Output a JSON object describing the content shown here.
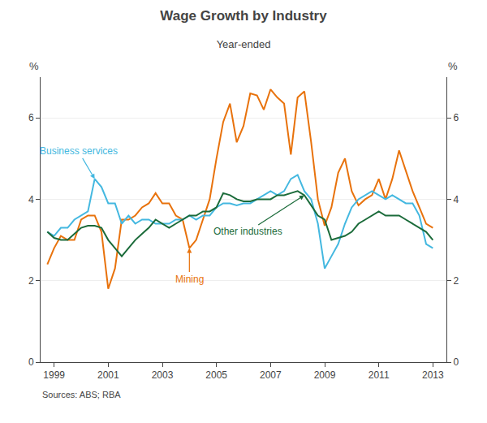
{
  "chart_data": {
    "type": "line",
    "title": "Wage Growth by Industry",
    "subtitle": "Year-ended",
    "ylabel": "%",
    "y2label": "%",
    "source": "Sources: ABS; RBA",
    "xlim": [
      1998.5,
      2013.5
    ],
    "xticks": [
      1999,
      2001,
      2003,
      2005,
      2007,
      2009,
      2011,
      2013
    ],
    "ylim": [
      0,
      7
    ],
    "yticks": [
      0,
      2,
      4,
      6
    ],
    "y2lim": [
      0,
      7
    ],
    "y2ticks": [
      0,
      2,
      4,
      6
    ],
    "grid": true,
    "x": [
      1998.75,
      1999.0,
      1999.25,
      1999.5,
      1999.75,
      2000.0,
      2000.25,
      2000.5,
      2000.75,
      2001.0,
      2001.25,
      2001.5,
      2001.75,
      2002.0,
      2002.25,
      2002.5,
      2002.75,
      2003.0,
      2003.25,
      2003.5,
      2003.75,
      2004.0,
      2004.25,
      2004.5,
      2004.75,
      2005.0,
      2005.25,
      2005.5,
      2005.75,
      2006.0,
      2006.25,
      2006.5,
      2006.75,
      2007.0,
      2007.25,
      2007.5,
      2007.75,
      2008.0,
      2008.25,
      2008.5,
      2008.75,
      2009.0,
      2009.25,
      2009.5,
      2009.75,
      2010.0,
      2010.25,
      2010.5,
      2010.75,
      2011.0,
      2011.25,
      2011.5,
      2011.75,
      2012.0,
      2012.25,
      2012.5,
      2012.75,
      2013.0
    ],
    "series": [
      {
        "name": "Mining",
        "color": "#E8720C",
        "values": [
          2.4,
          2.8,
          3.1,
          3.0,
          3.0,
          3.5,
          3.6,
          3.6,
          3.2,
          1.8,
          2.3,
          3.5,
          3.5,
          3.6,
          3.8,
          3.9,
          4.15,
          3.9,
          3.9,
          3.6,
          3.5,
          2.8,
          3.0,
          3.5,
          4.0,
          5.0,
          5.9,
          6.35,
          5.4,
          5.8,
          6.6,
          6.55,
          6.2,
          6.7,
          6.5,
          6.35,
          5.1,
          6.5,
          6.65,
          5.4,
          4.0,
          3.35,
          3.8,
          4.65,
          5.0,
          4.2,
          3.85,
          4.0,
          4.1,
          4.5,
          4.0,
          4.5,
          5.2,
          4.7,
          4.2,
          3.8,
          3.4,
          3.3
        ]
      },
      {
        "name": "Business services",
        "color": "#44B8E0",
        "values": [
          3.2,
          3.1,
          3.3,
          3.3,
          3.5,
          3.6,
          3.7,
          4.5,
          4.3,
          3.9,
          3.9,
          3.4,
          3.6,
          3.4,
          3.5,
          3.5,
          3.4,
          3.4,
          3.4,
          3.5,
          3.5,
          3.6,
          3.5,
          3.6,
          3.6,
          3.8,
          3.9,
          3.9,
          3.85,
          3.9,
          3.9,
          4.0,
          4.1,
          4.2,
          4.1,
          4.2,
          4.5,
          4.6,
          4.2,
          4.0,
          3.4,
          2.3,
          2.6,
          2.9,
          3.4,
          3.8,
          4.0,
          4.1,
          4.2,
          4.1,
          4.0,
          4.1,
          4.0,
          3.9,
          3.9,
          3.6,
          2.9,
          2.8
        ]
      },
      {
        "name": "Other industries",
        "color": "#1B6B3A",
        "values": [
          3.2,
          3.05,
          3.0,
          3.0,
          3.15,
          3.3,
          3.35,
          3.35,
          3.3,
          3.0,
          2.8,
          2.6,
          2.8,
          3.0,
          3.15,
          3.3,
          3.5,
          3.4,
          3.3,
          3.4,
          3.5,
          3.6,
          3.6,
          3.7,
          3.7,
          3.8,
          4.15,
          4.1,
          4.0,
          3.95,
          3.95,
          4.0,
          4.0,
          4.0,
          4.1,
          4.1,
          4.15,
          4.2,
          4.1,
          3.85,
          3.6,
          3.5,
          3.0,
          3.05,
          3.1,
          3.2,
          3.4,
          3.5,
          3.6,
          3.7,
          3.6,
          3.6,
          3.6,
          3.5,
          3.4,
          3.3,
          3.2,
          3.0
        ]
      }
    ]
  }
}
